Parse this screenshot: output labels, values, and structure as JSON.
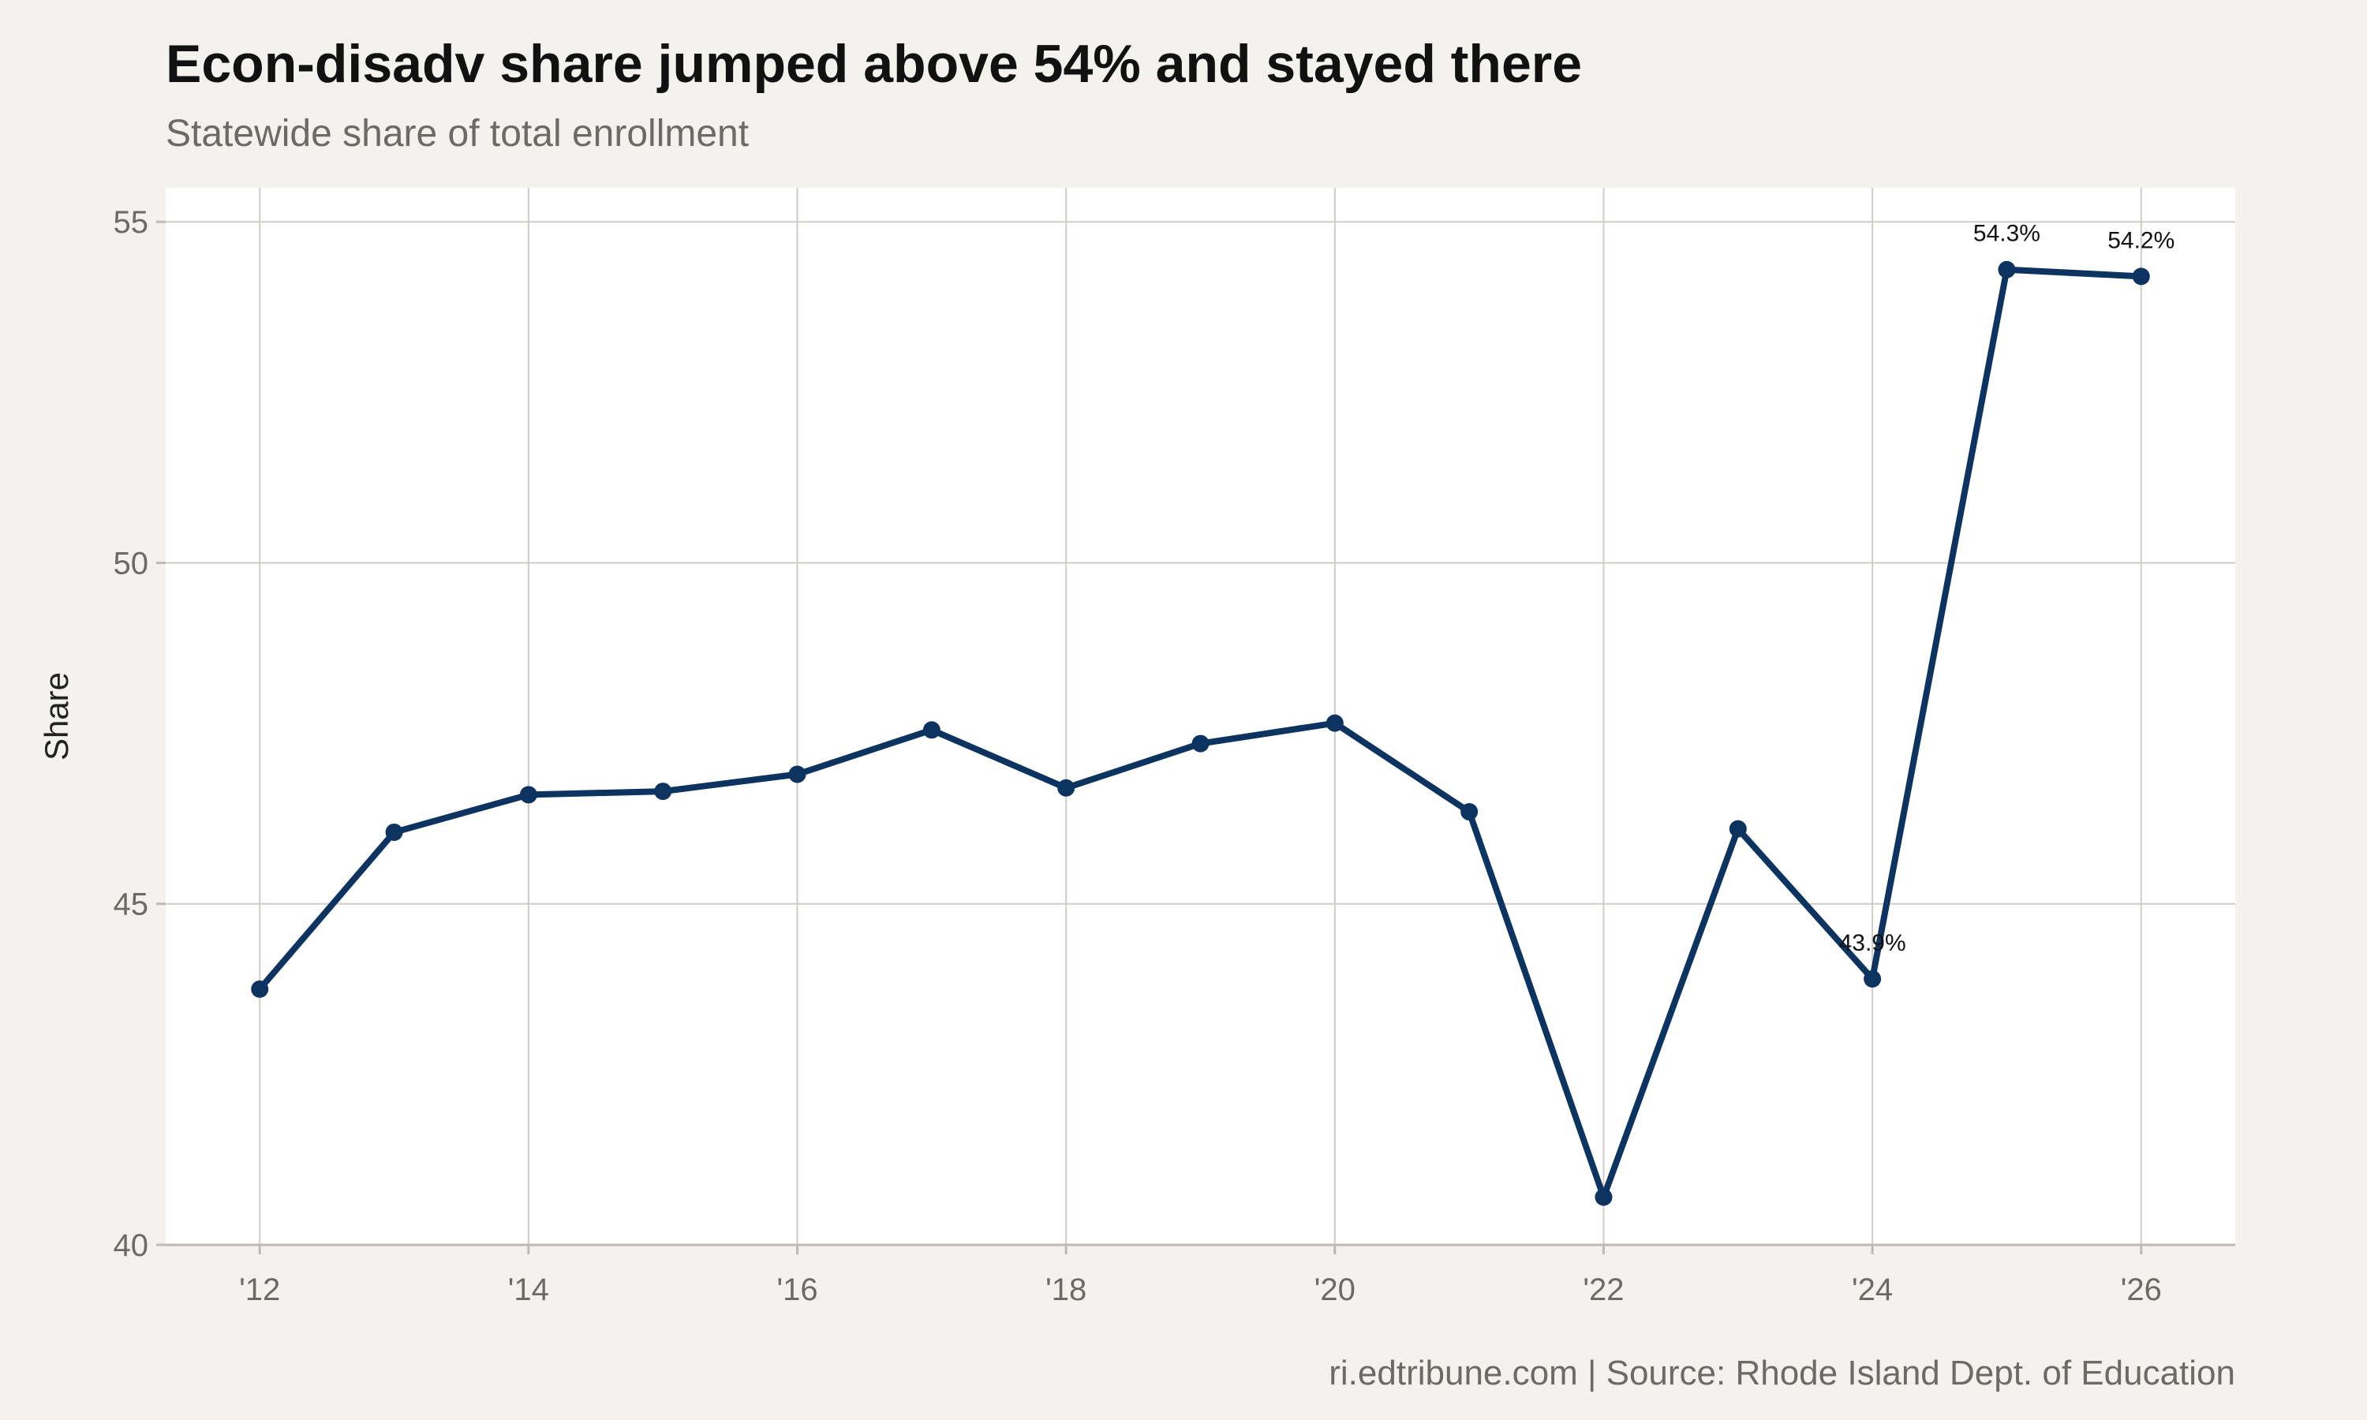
{
  "title": "Econ-disadv share jumped above 54% and stayed there",
  "subtitle": "Statewide share of total enrollment",
  "caption": "ri.edtribune.com | Source: Rhode Island Dept. of Education",
  "colors": {
    "line": "#0d3461",
    "background": "#f4f2ee",
    "panel": "#ffffff",
    "grid": "#cfcdc8"
  },
  "chart_data": {
    "type": "line",
    "title": "Econ-disadv share jumped above 54% and stayed there",
    "subtitle": "Statewide share of total enrollment",
    "xlabel": "",
    "ylabel": "Share",
    "x": [
      2012,
      2013,
      2014,
      2015,
      2016,
      2017,
      2018,
      2019,
      2020,
      2021,
      2022,
      2023,
      2024,
      2025,
      2026
    ],
    "x_tick_values": [
      2012,
      2014,
      2016,
      2018,
      2020,
      2022,
      2024,
      2026
    ],
    "x_tick_labels": [
      "'12",
      "'14",
      "'16",
      "'18",
      "'20",
      "'22",
      "'24",
      "'26"
    ],
    "xlim": [
      2011.3,
      2026.7
    ],
    "y_ticks": [
      40,
      45,
      50,
      55
    ],
    "ylim": [
      40,
      55.5
    ],
    "grid": true,
    "legend": "none",
    "series": [
      {
        "values": [
          43.75,
          46.05,
          46.6,
          46.65,
          46.9,
          47.55,
          46.7,
          47.35,
          47.65,
          46.35,
          40.7,
          46.1,
          43.9,
          54.3,
          54.2
        ]
      }
    ],
    "annotations": [
      {
        "x": 2024,
        "y": 43.9,
        "text": "43.9%"
      },
      {
        "x": 2025,
        "y": 54.3,
        "text": "54.3%"
      },
      {
        "x": 2026,
        "y": 54.2,
        "text": "54.2%"
      }
    ]
  }
}
